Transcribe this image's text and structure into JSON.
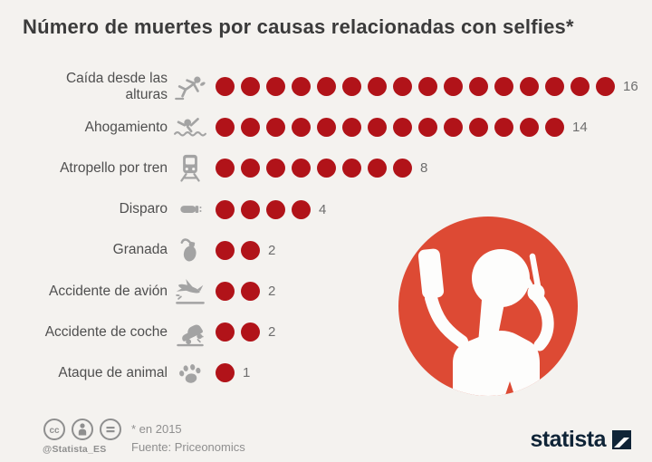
{
  "title": "Número de muertes por causas relacionadas con selfies*",
  "chart_data": {
    "type": "pictogram-bar",
    "title": "Número de muertes por causas relacionadas con selfies*",
    "categories": [
      "Caída desde las alturas",
      "Ahogamiento",
      "Atropello por tren",
      "Disparo",
      "Granada",
      "Accidente de avión",
      "Accidente de coche",
      "Ataque de animal"
    ],
    "values": [
      16,
      14,
      8,
      4,
      2,
      2,
      2,
      1
    ],
    "icons": [
      "falling-person",
      "drowning-person",
      "train",
      "bullet",
      "grenade",
      "plane-crash",
      "car-crash",
      "animal-paw"
    ],
    "unit": "muertes",
    "year_note": "* en 2015",
    "source": "Fuente: Priceonomics",
    "dot_color": "#b11319",
    "max_value": 16,
    "legend_position": "none",
    "grid": false
  },
  "illustration": {
    "name": "person-taking-selfie",
    "circle_color": "#dd4a34",
    "figure_color": "#fdfdfc"
  },
  "footer": {
    "license_icons": [
      "cc-icon",
      "cc-by-icon",
      "cc-nd-icon"
    ],
    "handle": "@Statista_ES",
    "note": "* en 2015",
    "source": "Fuente: Priceonomics",
    "brand": "statista"
  },
  "colors": {
    "background": "#f4f2ef",
    "title": "#3b3b3b",
    "label": "#4f4f4f",
    "icon_gray": "#a3a3a3",
    "value": "#6e6e6e",
    "dot": "#b11319",
    "footer_gray": "#8f8f8f",
    "brand_navy": "#0f2437",
    "figure_red": "#dd4a34"
  }
}
